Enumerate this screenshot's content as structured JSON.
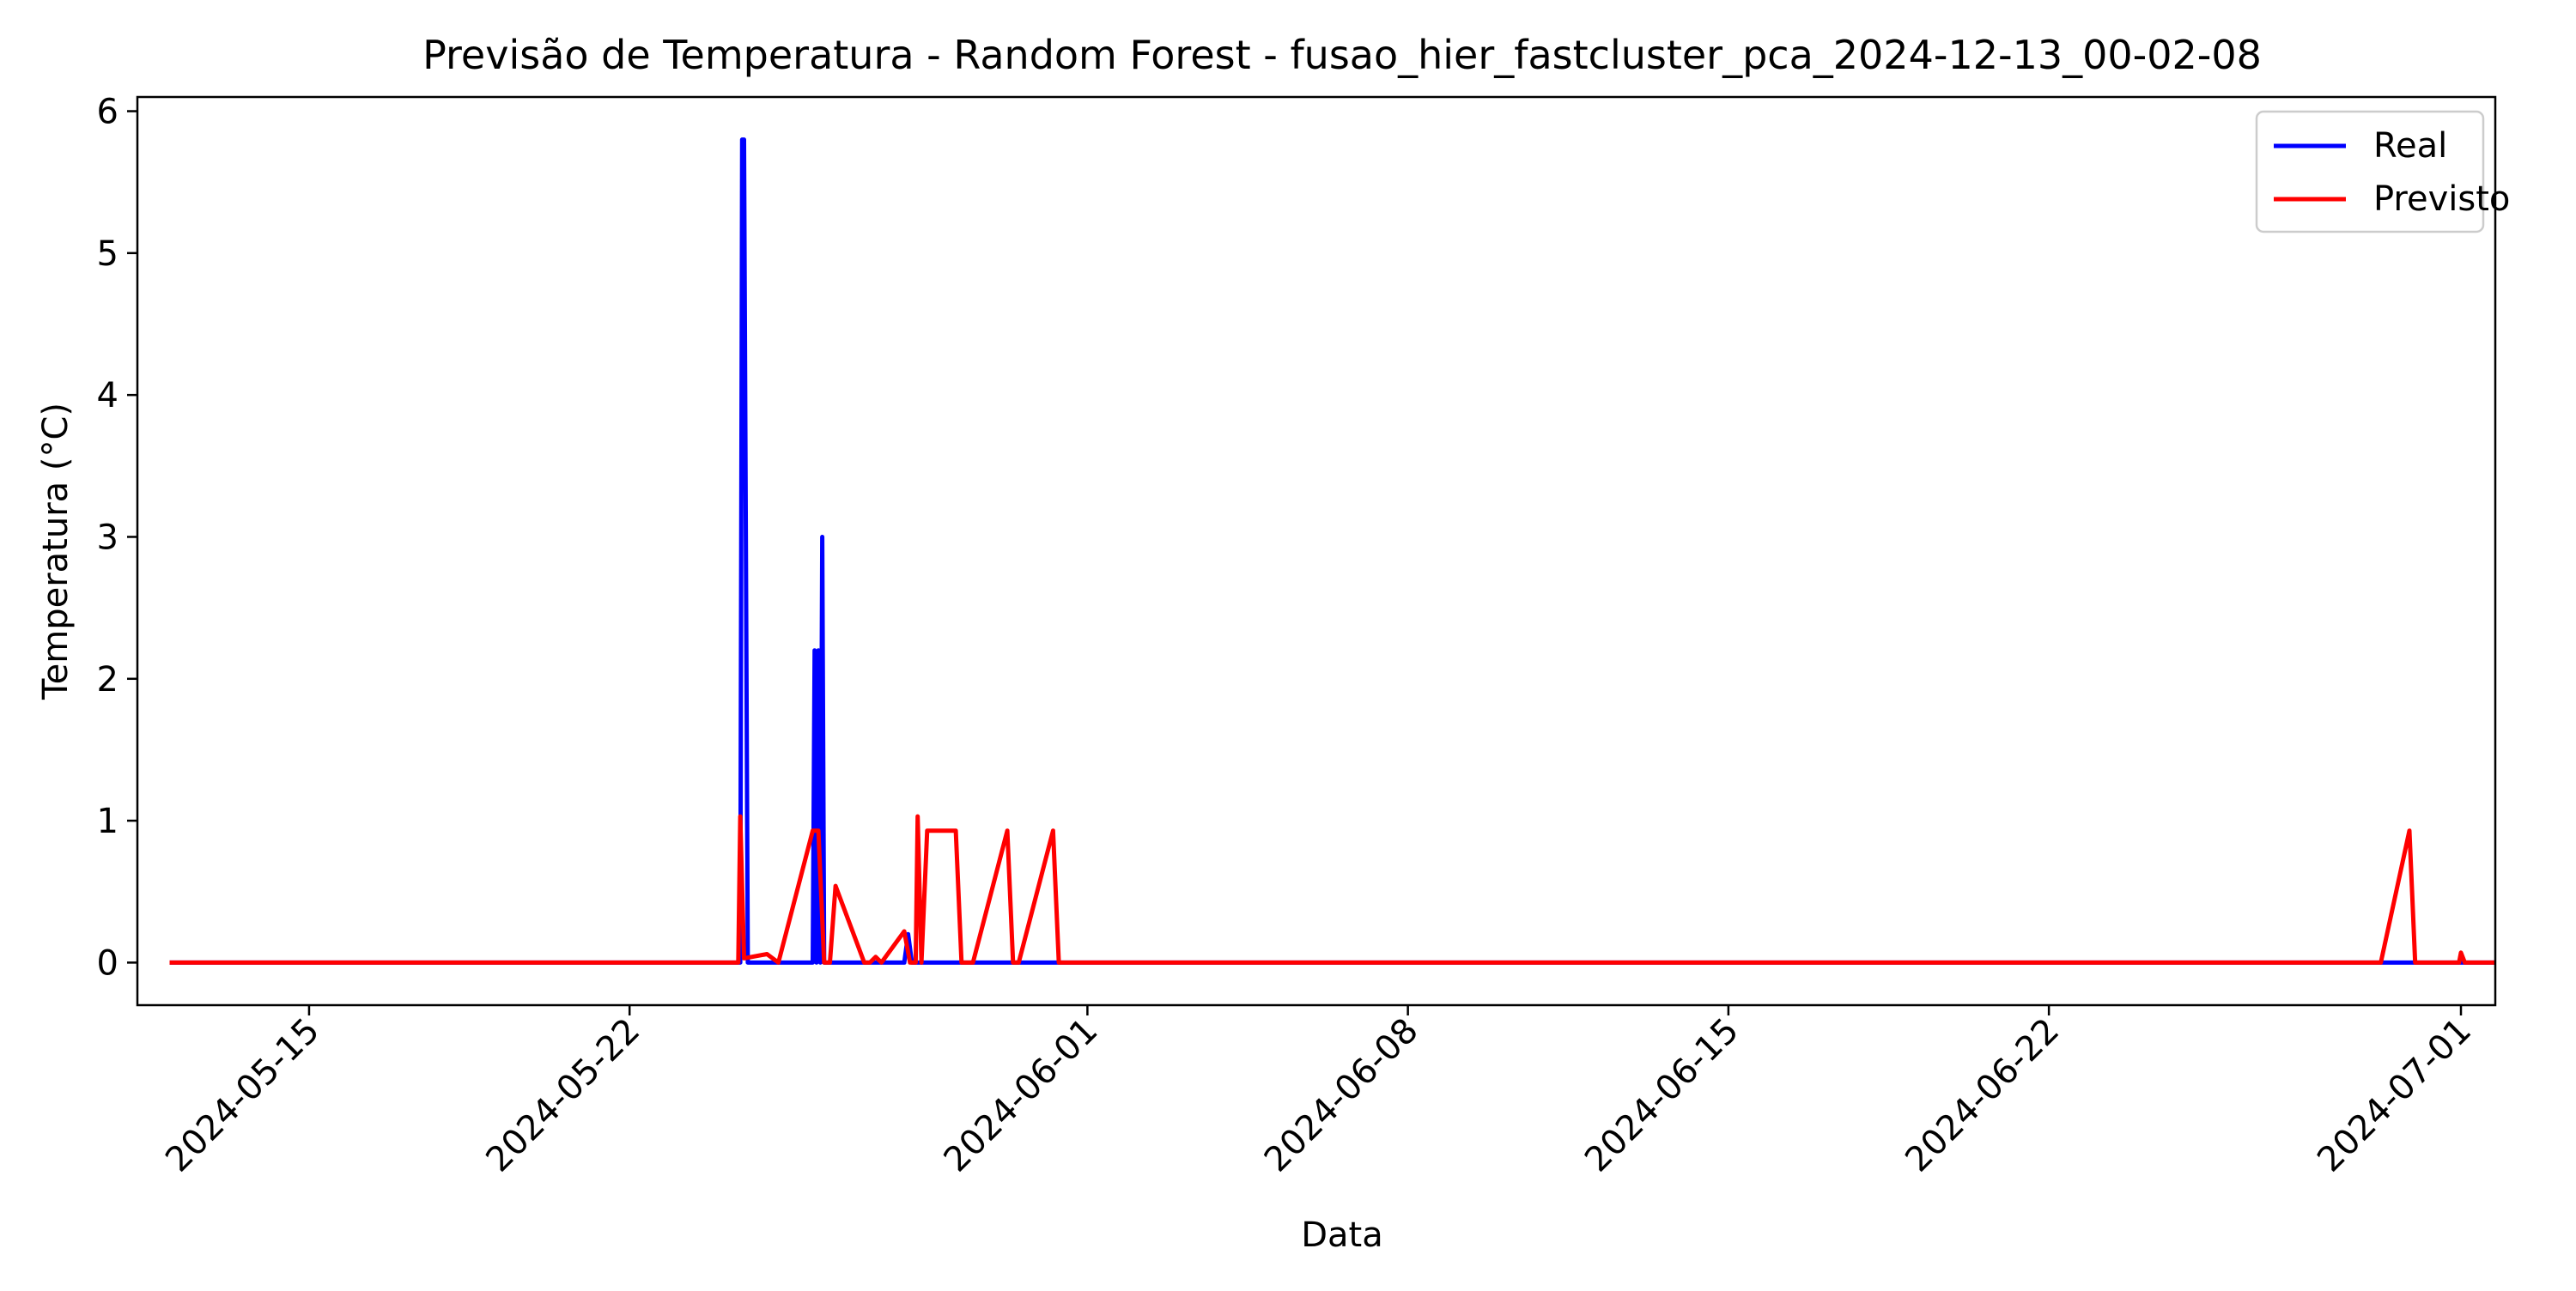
{
  "chart_data": {
    "type": "line",
    "title": "Previsão de Temperatura - Random Forest - fusao_hier_fastcluster_pca_2024-12-13_00-02-08",
    "xlabel": "Data",
    "ylabel": "Temperatura (°C)",
    "xlim": [
      "2024-05-11T06:00",
      "2024-07-01T18:00"
    ],
    "ylim": [
      -0.3,
      6.1
    ],
    "yticks": [
      0,
      1,
      2,
      3,
      4,
      5,
      6
    ],
    "xticks": [
      "2024-05-15",
      "2024-05-22",
      "2024-06-01",
      "2024-06-08",
      "2024-06-15",
      "2024-06-22",
      "2024-07-01"
    ],
    "grid": false,
    "legend": {
      "position": "top-right",
      "entries": [
        "Real",
        "Previsto"
      ]
    },
    "series": [
      {
        "name": "Real",
        "color": "#0000ff",
        "points": [
          [
            "2024-05-12T00:00",
            0
          ],
          [
            "2024-05-24T08:00",
            0
          ],
          [
            "2024-05-24T10:00",
            0
          ],
          [
            "2024-05-24T11:00",
            5.8
          ],
          [
            "2024-05-24T12:00",
            5.8
          ],
          [
            "2024-05-24T14:00",
            0
          ],
          [
            "2024-05-26T00:00",
            0
          ],
          [
            "2024-05-26T01:00",
            2.2
          ],
          [
            "2024-05-26T02:00",
            0
          ],
          [
            "2024-05-26T03:00",
            2.2
          ],
          [
            "2024-05-26T04:00",
            0
          ],
          [
            "2024-05-26T05:00",
            3.0
          ],
          [
            "2024-05-26T06:00",
            0
          ],
          [
            "2024-05-28T00:00",
            0
          ],
          [
            "2024-05-28T02:00",
            0.2
          ],
          [
            "2024-05-28T04:00",
            0
          ],
          [
            "2024-06-01T00:00",
            0
          ],
          [
            "2024-07-01T23:00",
            0
          ]
        ]
      },
      {
        "name": "Previsto",
        "color": "#ff0000",
        "points": [
          [
            "2024-05-12T00:00",
            0
          ],
          [
            "2024-05-24T09:00",
            0
          ],
          [
            "2024-05-24T10:00",
            1.03
          ],
          [
            "2024-05-24T12:00",
            0.03
          ],
          [
            "2024-05-25T00:00",
            0.06
          ],
          [
            "2024-05-25T06:00",
            0
          ],
          [
            "2024-05-26T00:00",
            0.93
          ],
          [
            "2024-05-26T03:00",
            0.93
          ],
          [
            "2024-05-26T06:00",
            0
          ],
          [
            "2024-05-26T09:00",
            0
          ],
          [
            "2024-05-26T12:00",
            0.54
          ],
          [
            "2024-05-27T03:00",
            0
          ],
          [
            "2024-05-27T06:00",
            0
          ],
          [
            "2024-05-27T09:00",
            0.04
          ],
          [
            "2024-05-27T12:00",
            0
          ],
          [
            "2024-05-28T00:00",
            0.22
          ],
          [
            "2024-05-28T03:00",
            0
          ],
          [
            "2024-05-28T06:00",
            0
          ],
          [
            "2024-05-28T07:00",
            1.03
          ],
          [
            "2024-05-28T09:00",
            0
          ],
          [
            "2024-05-28T12:00",
            0.93
          ],
          [
            "2024-05-29T03:00",
            0.93
          ],
          [
            "2024-05-29T06:00",
            0
          ],
          [
            "2024-05-29T12:00",
            0
          ],
          [
            "2024-05-30T06:00",
            0.93
          ],
          [
            "2024-05-30T09:00",
            0
          ],
          [
            "2024-05-30T12:00",
            0
          ],
          [
            "2024-05-31T06:00",
            0.93
          ],
          [
            "2024-05-31T09:00",
            0
          ],
          [
            "2024-06-29T06:00",
            0
          ],
          [
            "2024-06-29T21:00",
            0.93
          ],
          [
            "2024-06-30T00:00",
            0
          ],
          [
            "2024-06-30T23:00",
            0
          ],
          [
            "2024-07-01T00:00",
            0.07
          ],
          [
            "2024-07-01T02:00",
            0
          ],
          [
            "2024-07-01T20:00",
            0
          ],
          [
            "2024-07-01T21:00",
            0.08
          ],
          [
            "2024-07-01T22:00",
            0
          ]
        ]
      }
    ]
  }
}
